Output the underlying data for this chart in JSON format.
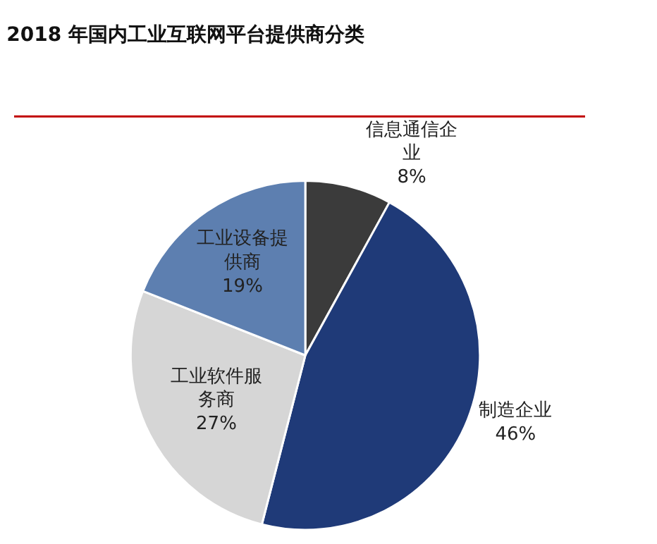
{
  "chart_data": {
    "type": "pie",
    "title": "2018 年国内工业互联网平台提供商分类",
    "categories": [
      "信息通信企业",
      "制造企业",
      "工业软件服务商",
      "工业设备提供商"
    ],
    "values": [
      8,
      46,
      27,
      19
    ],
    "value_labels": [
      "8%",
      "46%",
      "27%",
      "19%"
    ],
    "colors": [
      "#3b3b3b",
      "#1f3a78",
      "#d6d6d6",
      "#5d7fb0"
    ],
    "legend": false
  }
}
